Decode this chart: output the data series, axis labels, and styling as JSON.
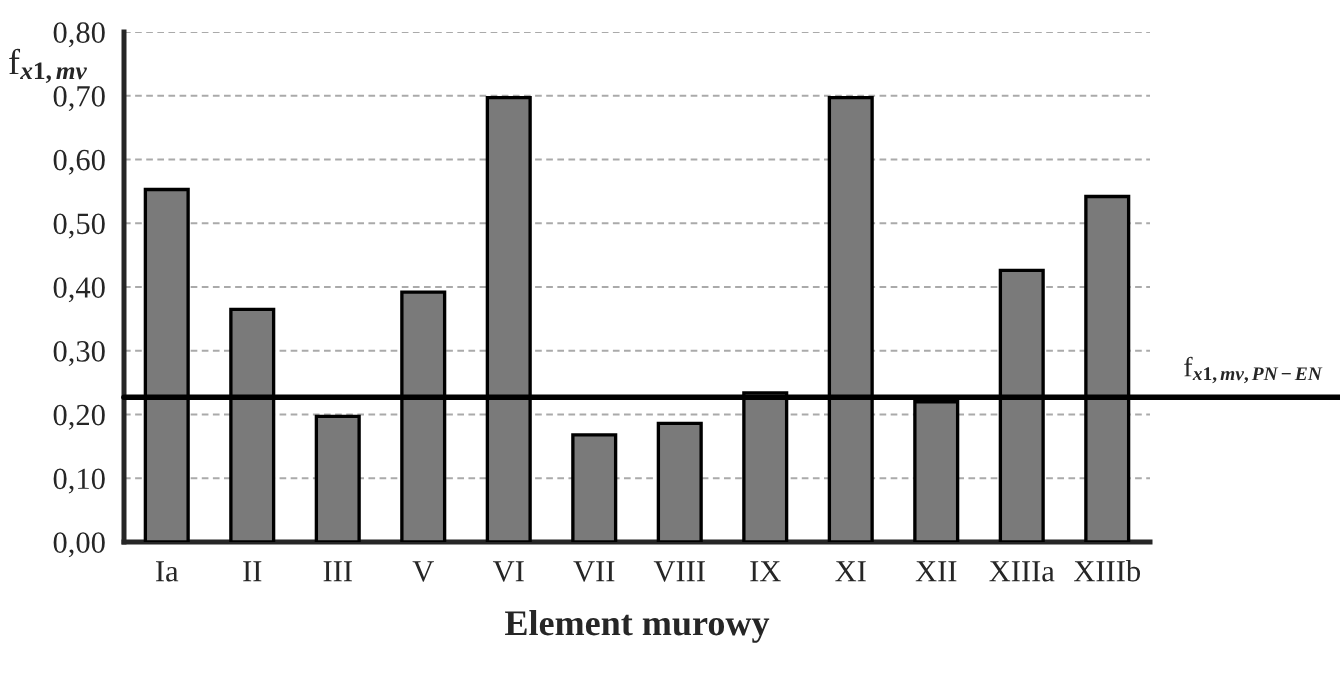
{
  "chart_data": {
    "type": "bar",
    "ylabel": "f$_{x1,mv}$",
    "xlabel": "Element murowy",
    "categories": [
      "Ia",
      "II",
      "III",
      "V",
      "VI",
      "VII",
      "VIII",
      "IX",
      "XI",
      "XII",
      "XIIIa",
      "XIIIb"
    ],
    "values": [
      0.553,
      0.365,
      0.197,
      0.392,
      0.697,
      0.168,
      0.186,
      0.234,
      0.697,
      0.22,
      0.426,
      0.542
    ],
    "color": "#7a7a7a",
    "ylim": [
      0,
      0.8
    ],
    "yticks": [
      {
        "value": 0,
        "label": "0,00"
      },
      {
        "value": 0.1,
        "label": "0,10"
      },
      {
        "value": 0.2,
        "label": "0,20"
      },
      {
        "value": 0.3,
        "label": "0,30"
      },
      {
        "value": 0.4,
        "label": "0,40"
      },
      {
        "value": 0.5,
        "label": "0,50"
      },
      {
        "value": 0.6,
        "label": "0,60"
      },
      {
        "value": 0.7,
        "label": "0,70"
      },
      {
        "value": 0.8,
        "label": "0,80"
      }
    ],
    "grid": "y",
    "ref_lines": [
      {
        "axis": "y",
        "value": 0.227,
        "label": "f$_{x1,mv,PN−EN}$",
        "color": "#000000",
        "line_style": "solid"
      }
    ]
  }
}
